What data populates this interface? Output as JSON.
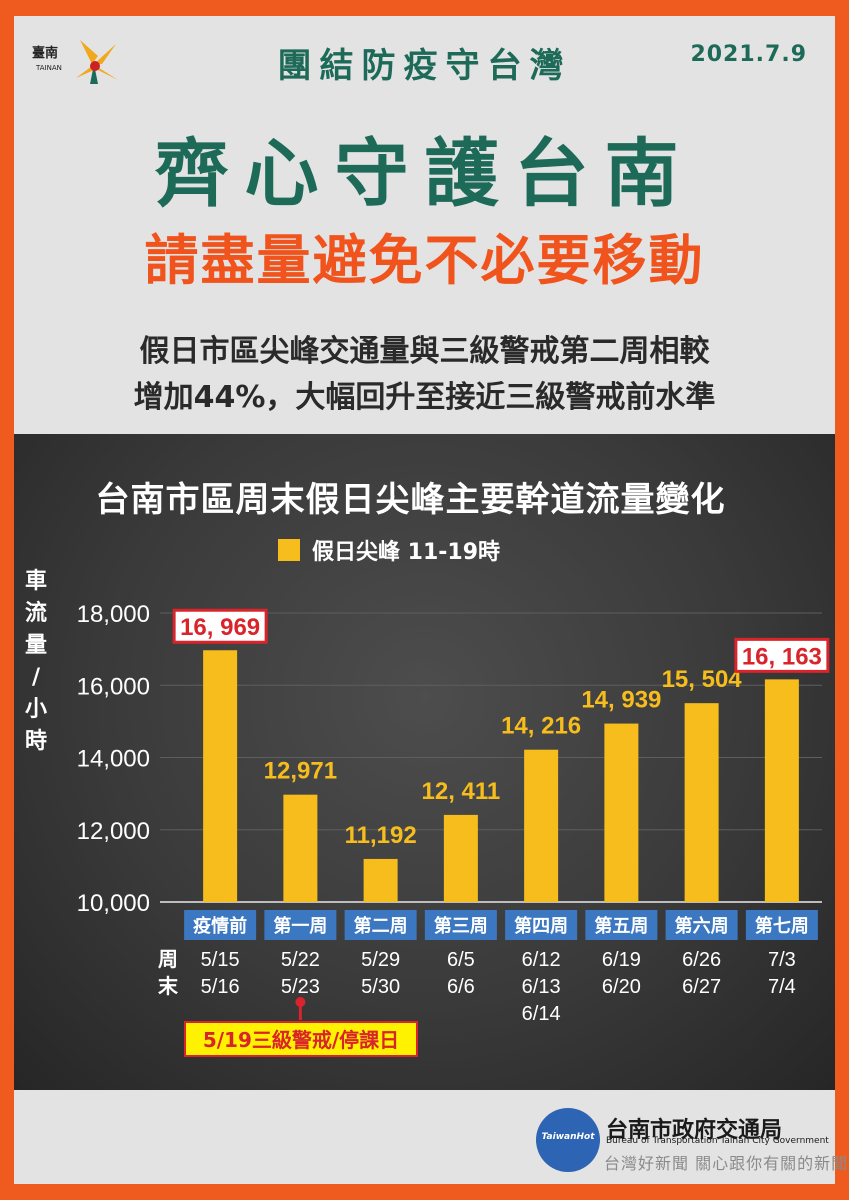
{
  "header": {
    "logo_text": "臺南",
    "logo_sub": "TAINAN",
    "title": "團結防疫守台灣",
    "date": "2021.7.9"
  },
  "main_title": "齊心守護台南",
  "sub_title": "請盡量避免不必要移動",
  "description": {
    "line1": "假日市區尖峰交通量與三級警戒第二周相較",
    "line2": "增加44%，大幅回升至接近三級警戒前水準"
  },
  "colors": {
    "accent_green": "#1e6a59",
    "accent_orange": "#f0531c",
    "bar_yellow": "#f6bd1d",
    "category_blue": "#3c77c1",
    "highlight_red": "#d8242a"
  },
  "chart_data": {
    "type": "bar",
    "title": "台南市區周末假日尖峰主要幹道流量變化",
    "legend": [
      "假日尖峰  11-19時"
    ],
    "ylabel": "車流量/小時",
    "ylim": [
      10000,
      18000
    ],
    "yticks": [
      "10,000",
      "12,000",
      "14,000",
      "16,000",
      "18,000"
    ],
    "grid": true,
    "categories": [
      "疫情前",
      "第一周",
      "第二周",
      "第三周",
      "第四周",
      "第五周",
      "第六周",
      "第七周"
    ],
    "values": [
      16969,
      12971,
      11192,
      12411,
      14216,
      14939,
      15504,
      16163
    ],
    "value_labels": [
      "16, 969",
      "12,971",
      "11,192",
      "12, 411",
      "14, 216",
      "14, 939",
      "15, 504",
      "16, 163"
    ],
    "highlighted": [
      true,
      false,
      false,
      false,
      false,
      false,
      false,
      true
    ],
    "weekend_label": "周末",
    "weekend_dates": [
      [
        "5/15",
        "5/16"
      ],
      [
        "5/22",
        "5/23"
      ],
      [
        "5/29",
        "5/30"
      ],
      [
        "6/5",
        "6/6"
      ],
      [
        "6/12",
        "6/13",
        "6/14"
      ],
      [
        "6/19",
        "6/20"
      ],
      [
        "6/26",
        "6/27"
      ],
      [
        "7/3",
        "7/4"
      ]
    ],
    "annotation": "5/19三級警戒/停課日"
  },
  "footer": {
    "logo_text": "TaiwanHot",
    "org": "台南市政府交通局",
    "org_en": "Bureau of Transportation Tainan City Government",
    "watermark": "台灣好新聞 關心跟你有關的新聞"
  }
}
